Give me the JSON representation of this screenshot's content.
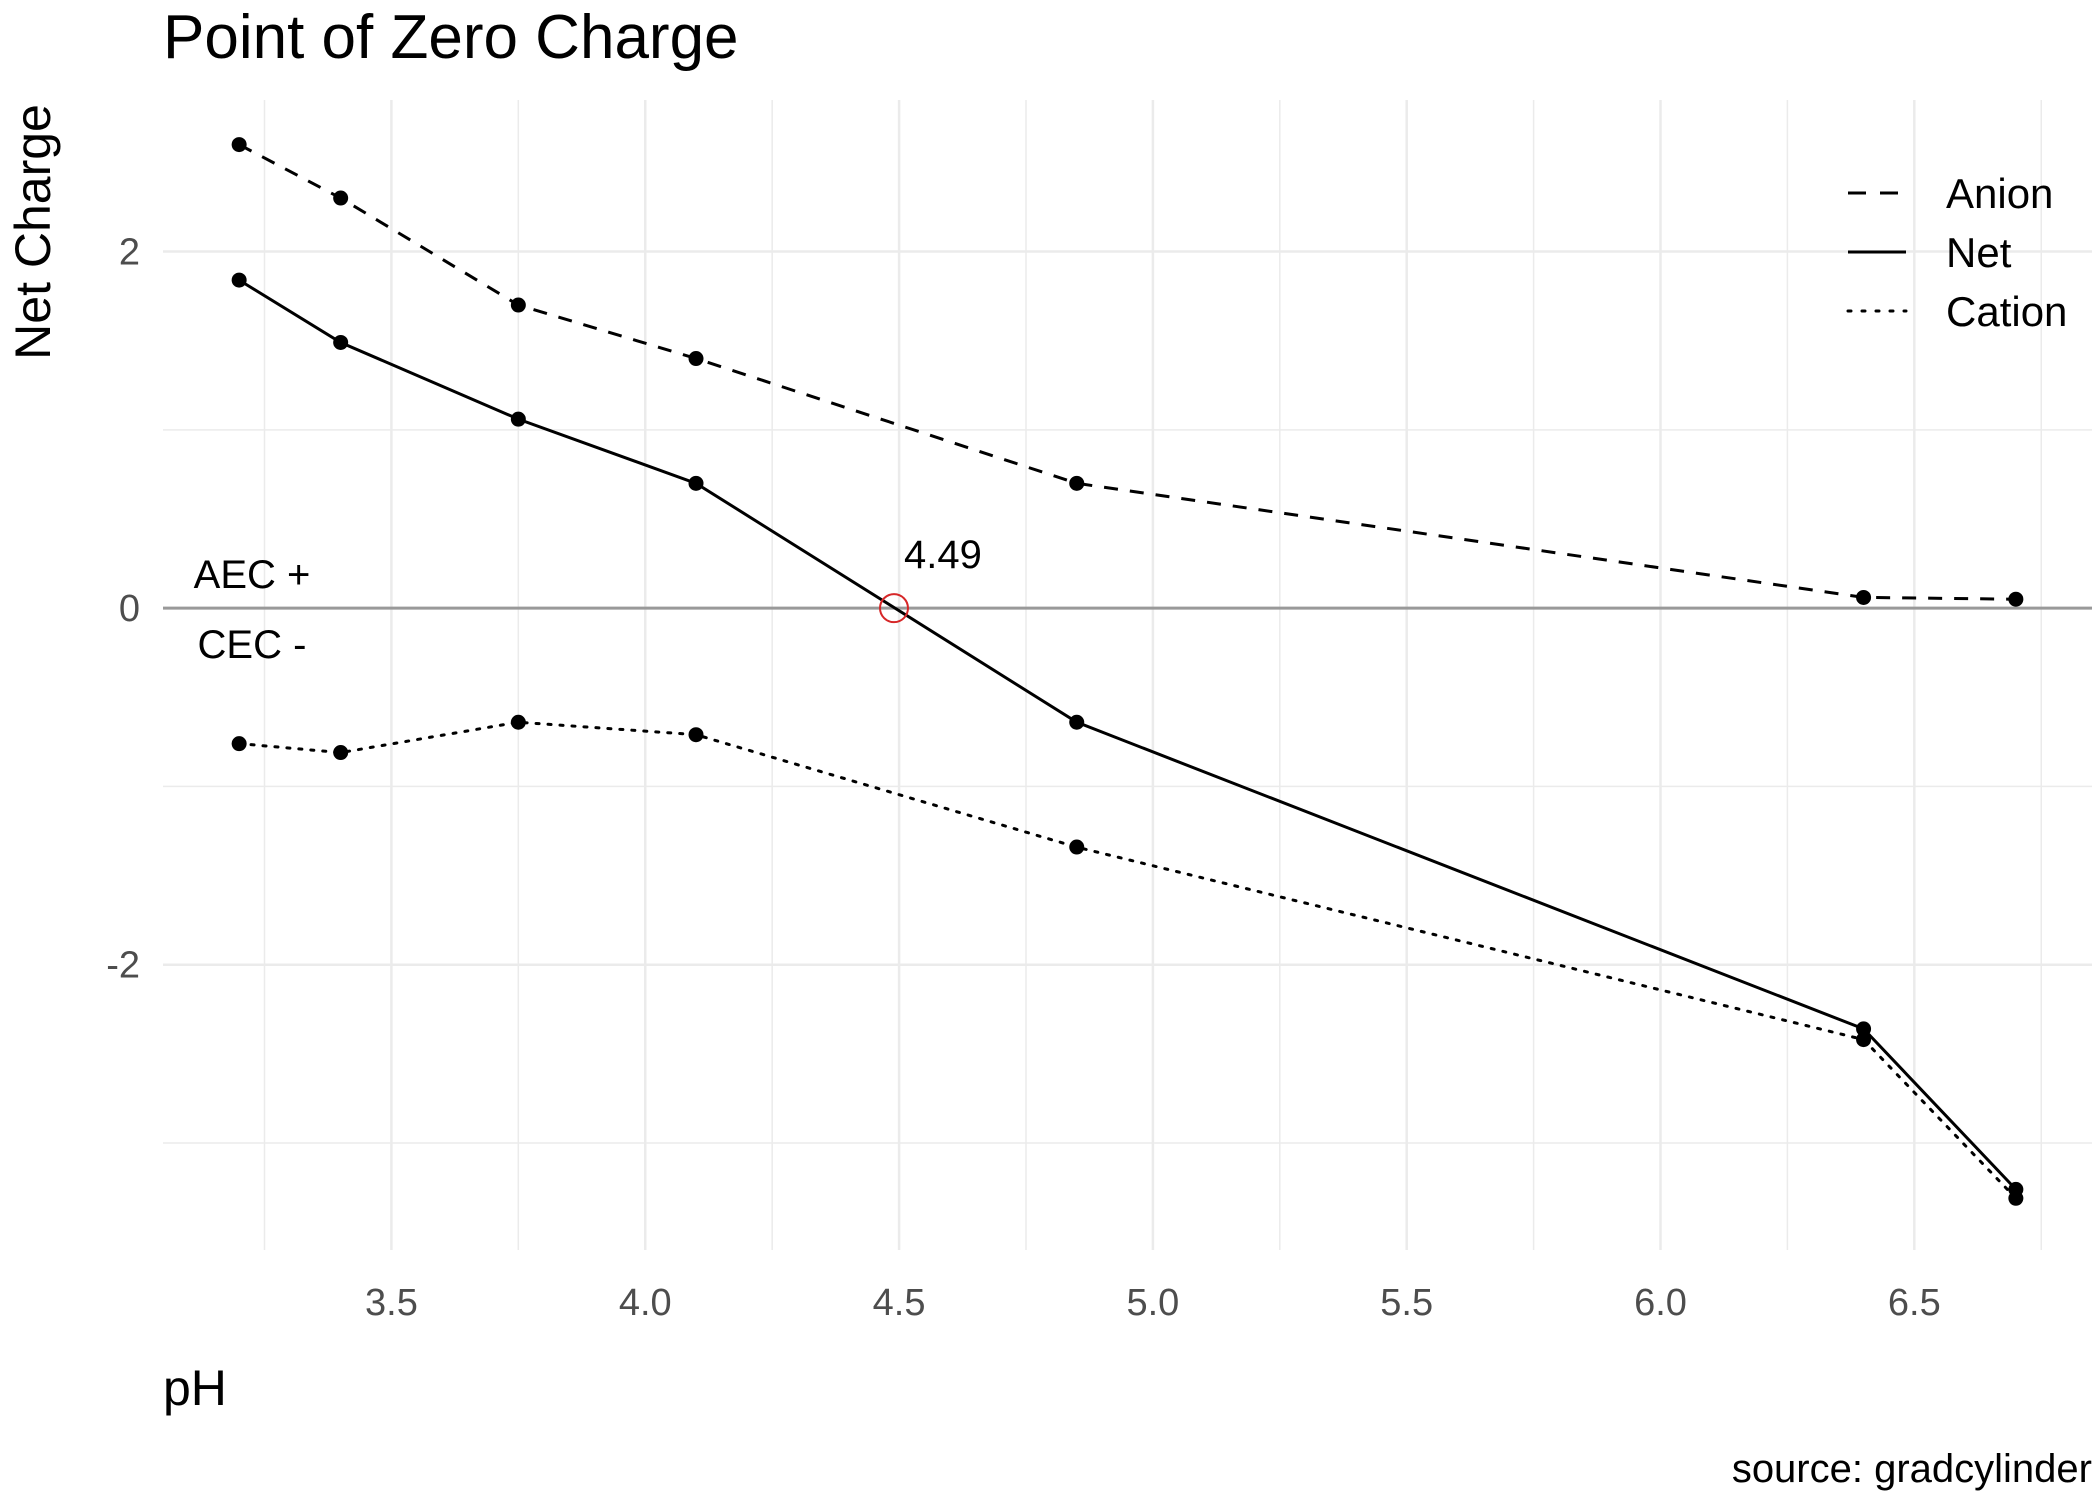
{
  "chart_data": {
    "type": "line",
    "title": "Point of Zero Charge",
    "xlabel": "pH",
    "ylabel": "Net Charge",
    "caption": "source: gradcylinder",
    "xlim": [
      3.05,
      6.85
    ],
    "ylim": [
      -3.6,
      2.85
    ],
    "x_ticks": [
      3.5,
      4.0,
      4.5,
      5.0,
      5.5,
      6.0,
      6.5
    ],
    "x_tick_labels": [
      "3.5",
      "4.0",
      "4.5",
      "5.0",
      "5.5",
      "6.0",
      "6.5"
    ],
    "y_ticks": [
      -2,
      0,
      2
    ],
    "y_tick_labels": [
      "-2",
      "0",
      "2"
    ],
    "grid": true,
    "legend_position": "top-right",
    "series": [
      {
        "name": "Anion",
        "linetype": "dashed",
        "x": [
          3.2,
          3.4,
          3.75,
          4.1,
          4.85,
          6.4,
          6.7
        ],
        "y": [
          2.6,
          2.3,
          1.7,
          1.4,
          0.7,
          0.06,
          0.05
        ]
      },
      {
        "name": "Net",
        "linetype": "solid",
        "x": [
          3.2,
          3.4,
          3.75,
          4.1,
          4.85,
          6.4,
          6.7
        ],
        "y": [
          1.84,
          1.49,
          1.06,
          0.7,
          -0.64,
          -2.36,
          -3.26
        ]
      },
      {
        "name": "Cation",
        "linetype": "dotted",
        "x": [
          3.2,
          3.4,
          3.75,
          4.1,
          4.85,
          6.4,
          6.7
        ],
        "y": [
          -0.76,
          -0.81,
          -0.64,
          -0.71,
          -1.34,
          -2.42,
          -3.31
        ]
      }
    ],
    "annotations": {
      "zero_line_y": 0,
      "pzc": {
        "x": 4.49,
        "y": 0,
        "label": "4.49",
        "color": "#d62728"
      },
      "above_label": "AEC +",
      "below_label": "CEC -"
    }
  },
  "colors": {
    "line": "#000000",
    "grid": "#ebebeb",
    "zero_line": "#999999",
    "marker_highlight": "#d62728"
  }
}
